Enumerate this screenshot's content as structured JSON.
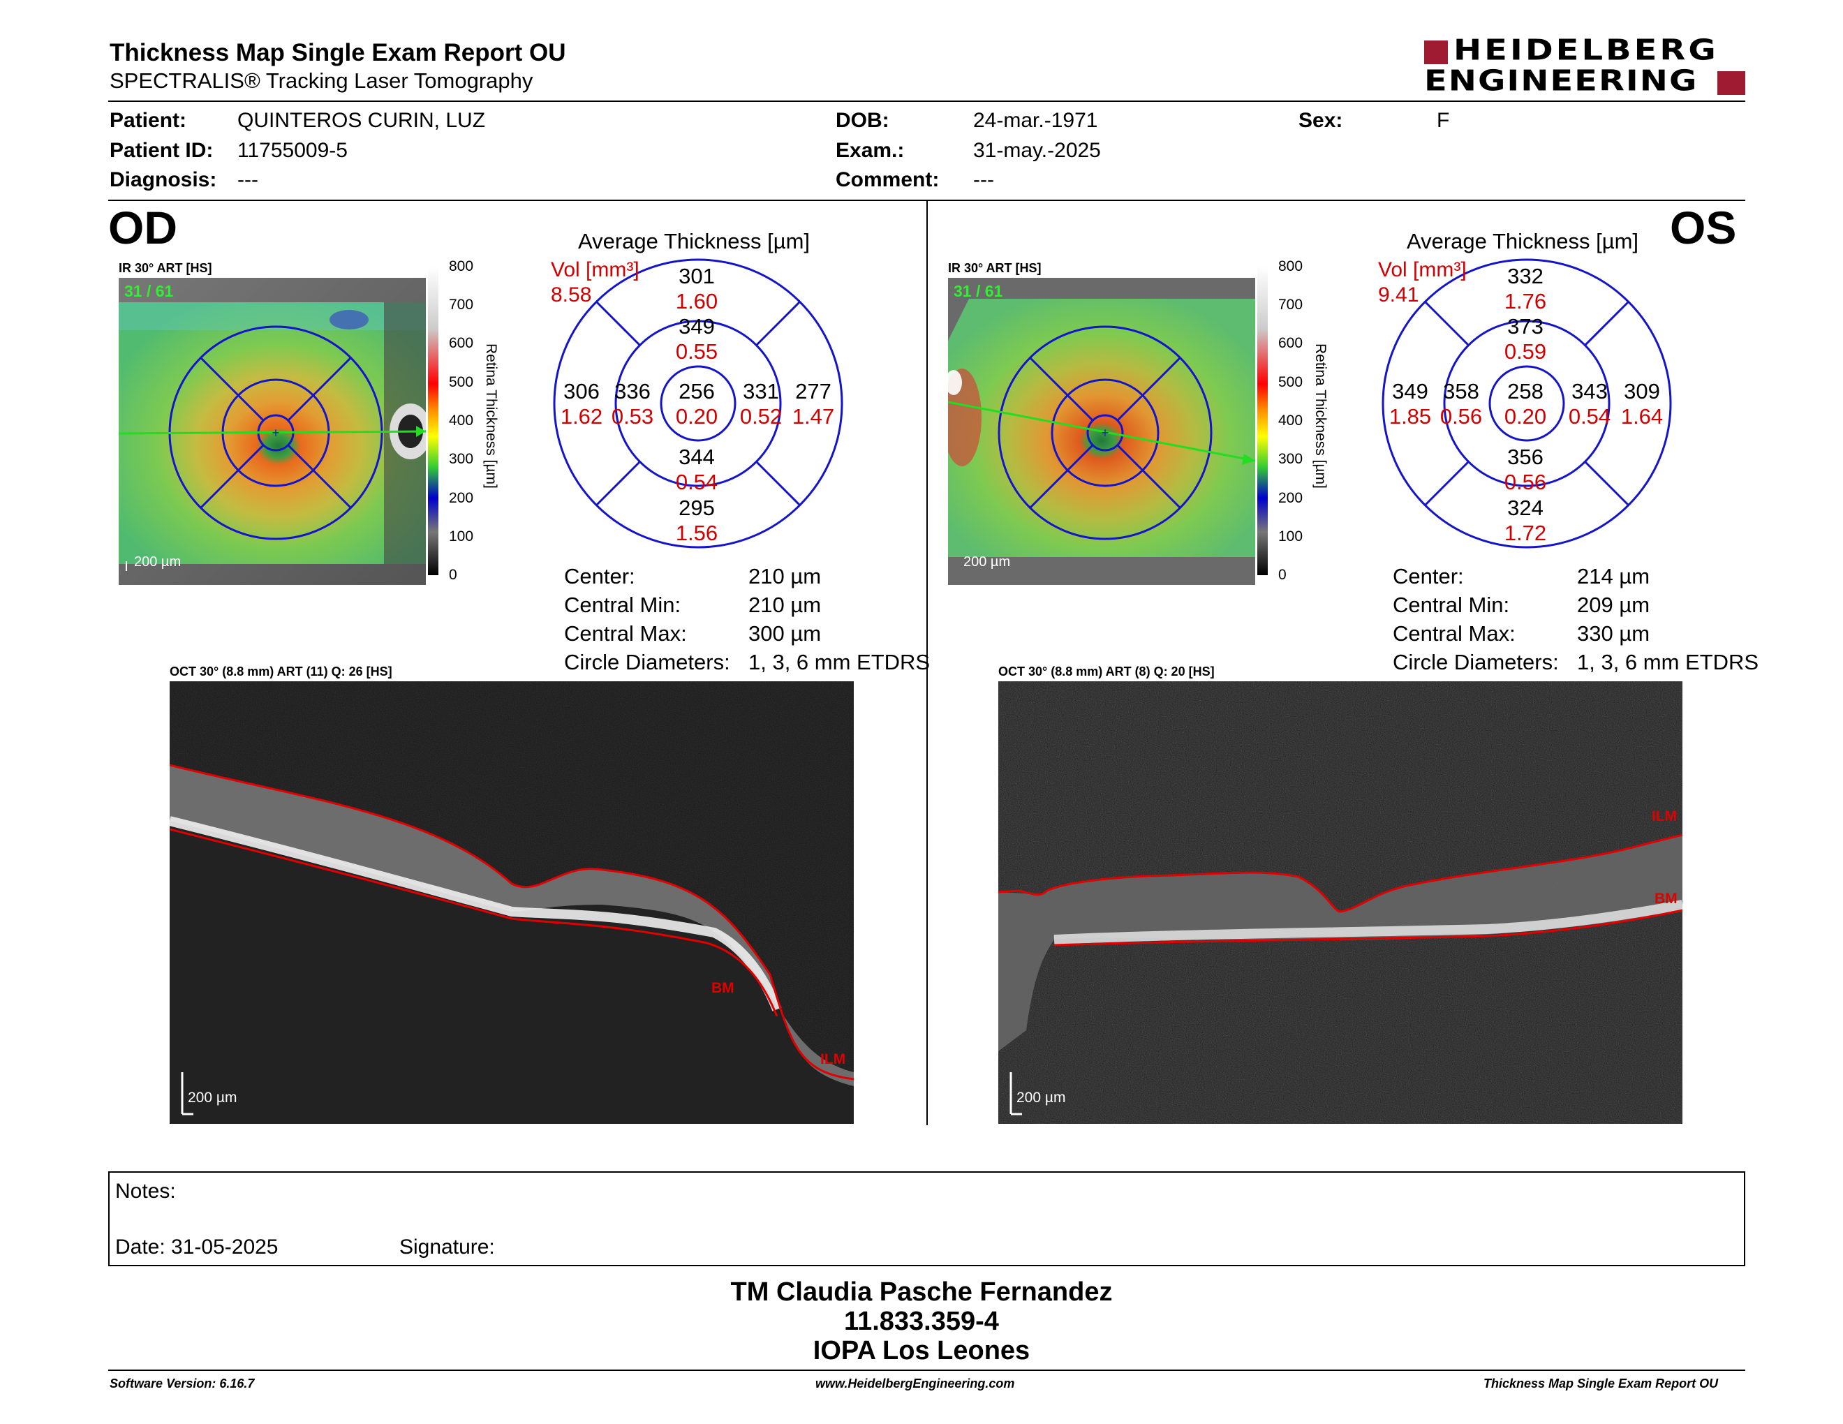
{
  "header": {
    "title": "Thickness Map Single Exam Report OU",
    "subtitle": "SPECTRALIS® Tracking Laser Tomography",
    "logo_line1": "HEIDELBERG",
    "logo_line2": "ENGINEERING",
    "brand_color": "#9e1b32"
  },
  "patient": {
    "patient_label": "Patient:",
    "patient_value": "QUINTEROS CURIN, LUZ",
    "id_label": "Patient ID:",
    "id_value": "11755009-5",
    "diagnosis_label": "Diagnosis:",
    "diagnosis_value": "---",
    "dob_label": "DOB:",
    "dob_value": "24-mar.-1971",
    "exam_label": "Exam.:",
    "exam_value": "31-may.-2025",
    "comment_label": "Comment:",
    "comment_value": "---",
    "sex_label": "Sex:",
    "sex_value": "F"
  },
  "colorbar": {
    "ticks": [
      "800",
      "700",
      "600",
      "500",
      "400",
      "300",
      "200",
      "100",
      "0"
    ],
    "title": "Retina Thickness [µm]"
  },
  "od": {
    "eye": "OD",
    "fundus_label": "IR 30° ART [HS]",
    "frame": "31 / 61",
    "scale": "200 µm",
    "avg_title": "Average Thickness [µm]",
    "vol_label": "Vol [mm³]",
    "vol_value": "8.58",
    "grid": {
      "center": [
        "256",
        "0.20"
      ],
      "inner_sup": [
        "349",
        "0.55"
      ],
      "inner_inf": [
        "344",
        "0.54"
      ],
      "inner_left": [
        "336",
        "0.53"
      ],
      "inner_right": [
        "331",
        "0.52"
      ],
      "outer_sup": [
        "301",
        "1.60"
      ],
      "outer_inf": [
        "295",
        "1.56"
      ],
      "outer_left": [
        "306",
        "1.62"
      ],
      "outer_right": [
        "277",
        "1.47"
      ]
    },
    "stats": [
      {
        "label": "Center:",
        "value": "210 µm"
      },
      {
        "label": "Central Min:",
        "value": "210 µm"
      },
      {
        "label": "Central Max:",
        "value": "300 µm"
      },
      {
        "label": "Circle Diameters:",
        "value": "1, 3, 6 mm ETDRS"
      }
    ],
    "oct_label": "OCT 30° (8.8 mm) ART (11) Q: 26 [HS]",
    "oct_scale": "200 µm",
    "ilm": "ILM",
    "bm": "BM"
  },
  "os": {
    "eye": "OS",
    "fundus_label": "IR 30° ART [HS]",
    "frame": "31 / 61",
    "scale": "200 µm",
    "avg_title": "Average Thickness [µm]",
    "vol_label": "Vol [mm³]",
    "vol_value": "9.41",
    "grid": {
      "center": [
        "258",
        "0.20"
      ],
      "inner_sup": [
        "373",
        "0.59"
      ],
      "inner_inf": [
        "356",
        "0.56"
      ],
      "inner_left": [
        "358",
        "0.56"
      ],
      "inner_right": [
        "343",
        "0.54"
      ],
      "outer_sup": [
        "332",
        "1.76"
      ],
      "outer_inf": [
        "324",
        "1.72"
      ],
      "outer_left": [
        "349",
        "1.85"
      ],
      "outer_right": [
        "309",
        "1.64"
      ]
    },
    "stats": [
      {
        "label": "Center:",
        "value": "214 µm"
      },
      {
        "label": "Central Min:",
        "value": "209 µm"
      },
      {
        "label": "Central Max:",
        "value": "330 µm"
      },
      {
        "label": "Circle Diameters:",
        "value": "1, 3, 6 mm ETDRS"
      }
    ],
    "oct_label": "OCT 30° (8.8 mm) ART (8) Q: 20 [HS]",
    "oct_scale": "200 µm",
    "ilm": "ILM",
    "bm": "BM"
  },
  "notes": {
    "notes_label": "Notes:",
    "date_label": "Date: 31-05-2025",
    "signature_label": "Signature:"
  },
  "signer": {
    "name": "TM Claudia Pasche Fernandez",
    "id": "11.833.359-4",
    "place": "IOPA Los Leones"
  },
  "footer": {
    "version": "Software Version: 6.16.7",
    "url": "www.HeidelbergEngineering.com",
    "report": "Thickness Map Single Exam Report OU"
  }
}
